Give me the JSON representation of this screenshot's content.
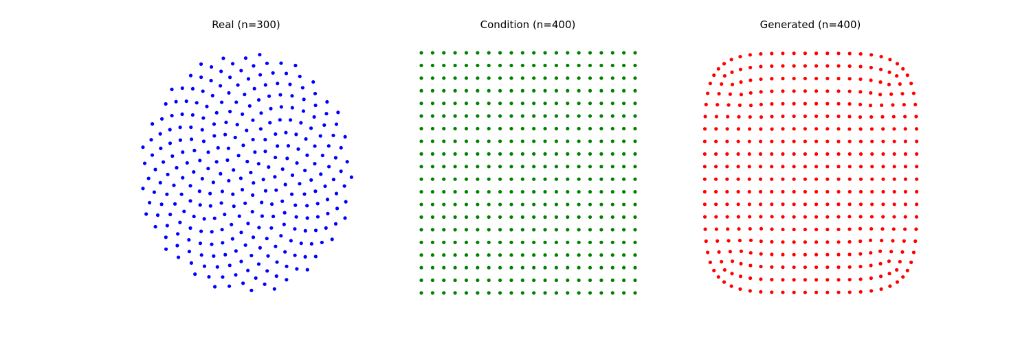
{
  "chart_data": [
    {
      "type": "scatter",
      "title": "Real (n=300)",
      "color": "#0000ff",
      "n": 300,
      "pattern": "phyllotaxis spiral (Fermat spiral), radius ~1",
      "xlim": [
        -1.1,
        1.1
      ],
      "ylim": [
        -1.1,
        1.1
      ],
      "axes": "off",
      "grid": false
    },
    {
      "type": "scatter",
      "title": "Condition (n=400)",
      "color": "#008000",
      "n": 400,
      "pattern": "regular 20x20 grid",
      "x_range": [
        -1,
        1
      ],
      "y_range": [
        -1,
        1
      ],
      "axes": "off",
      "grid": false
    },
    {
      "type": "scatter",
      "title": "Generated (n=400)",
      "color": "#ff0000",
      "n": 400,
      "pattern": "20x20 grid warped toward a rounded square; boundary rows compressed",
      "x_range": [
        -1,
        1
      ],
      "y_range": [
        -1,
        1
      ],
      "axes": "off",
      "grid": false
    }
  ]
}
